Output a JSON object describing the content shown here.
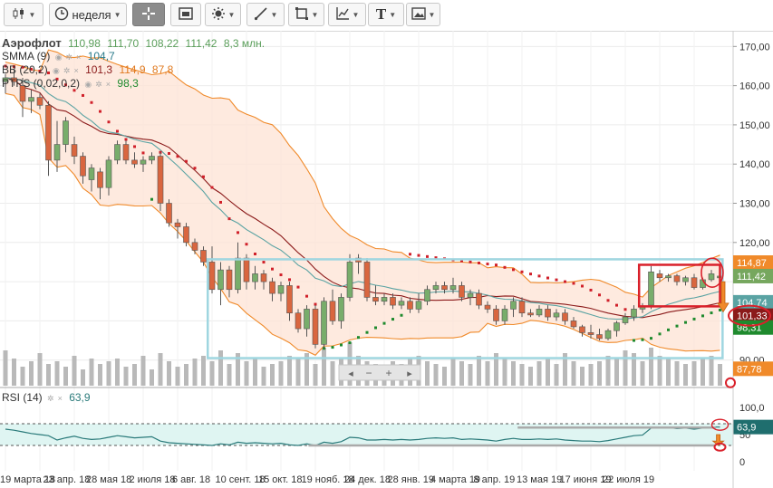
{
  "toolbar": {
    "period_label": "неделя",
    "buttons": [
      "candles-icon",
      "clock-icon",
      "crosshair-icon",
      "window-icon",
      "brightness-icon",
      "line-tool-icon",
      "shape-icon",
      "indicator-icon",
      "text-icon",
      "image-icon"
    ]
  },
  "legend": {
    "ticker": "Аэрофлот",
    "ohlc": [
      "110,98",
      "111,70",
      "108,22",
      "111,42"
    ],
    "volume": "8,3 млн.",
    "smma_label": "SMMA (9)",
    "smma_value": "104,7",
    "bb_label": "BB (20,2)",
    "bb_values": [
      "101,3",
      "114,9",
      "87,8"
    ],
    "ptps_label": "PTPS (0,02,0,2)",
    "ptps_value": "98,3"
  },
  "rsi_legend": {
    "label": "RSI (14)",
    "value": "63,9"
  },
  "price_axis_ticks": [
    "170,00",
    "160,00",
    "150,00",
    "140,00",
    "130,00",
    "120,00",
    "100,00"
  ],
  "price_axis_tag_90": "90,00",
  "rsi_axis_ticks": [
    "100,0",
    "50",
    "0"
  ],
  "price_tags": [
    {
      "text": "114,87",
      "color": "#f08a2a"
    },
    {
      "text": "111,42",
      "color": "#76a75e"
    },
    {
      "text": "104,74",
      "color": "#5aa3a3"
    },
    {
      "text": "101,33",
      "color": "#8b1a1a"
    },
    {
      "text": "98,31",
      "color": "#1f8a2e"
    },
    {
      "text": "87,78",
      "color": "#f08a2a"
    }
  ],
  "rsi_tag": {
    "text": "63,9",
    "color": "#1f6e6e"
  },
  "x_axis_labels": [
    "19 марта 18",
    "23 апр. 18",
    "28 мая 18",
    "2 июля 18",
    "6 авг. 18",
    "10 сент. 18",
    "15 окт. 18",
    "19 нояб. 18",
    "24 дек. 18",
    "28 янв. 19",
    "4 марта 19",
    "8 апр. 19",
    "13 мая 19",
    "17 июня 19",
    "22 июля 19"
  ],
  "nav_controls": [
    "◂",
    "−",
    "+",
    "▸"
  ],
  "colors": {
    "bull": "#78ad6b",
    "bear": "#d9663f",
    "bb_band": "#f08a2a",
    "bb_fill": "#fde3d4",
    "smma": "#5aa3a3",
    "bb_mid": "#8b1a1a",
    "ptps_bull": "#1f8a2e",
    "ptps_bear": "#d0202a",
    "volume": "#b9b9b9",
    "rsi": "#2a7a7a",
    "rsi_fill": "#dff5f2",
    "annotation_box": "#9fd6e0",
    "annotation_red": "#d9202a"
  },
  "chart_data": {
    "type": "candlestick",
    "period": "неделя",
    "ticker": "Аэрофлот",
    "ylim": [
      83,
      174
    ],
    "candles": [
      {
        "o": 161,
        "h": 163,
        "l": 158,
        "c": 162
      },
      {
        "o": 162,
        "h": 164,
        "l": 160,
        "c": 161
      },
      {
        "o": 160,
        "h": 162,
        "l": 152,
        "c": 156
      },
      {
        "o": 156,
        "h": 159,
        "l": 153,
        "c": 157
      },
      {
        "o": 157,
        "h": 158,
        "l": 154,
        "c": 155
      },
      {
        "o": 155,
        "h": 156,
        "l": 137,
        "c": 141
      },
      {
        "o": 141,
        "h": 151,
        "l": 138,
        "c": 145
      },
      {
        "o": 145,
        "h": 152,
        "l": 143,
        "c": 151
      },
      {
        "o": 145,
        "h": 147,
        "l": 140,
        "c": 142
      },
      {
        "o": 142,
        "h": 143,
        "l": 135,
        "c": 137
      },
      {
        "o": 136,
        "h": 140,
        "l": 133,
        "c": 139
      },
      {
        "o": 138,
        "h": 139,
        "l": 131,
        "c": 134
      },
      {
        "o": 134,
        "h": 142,
        "l": 132,
        "c": 141
      },
      {
        "o": 141,
        "h": 146,
        "l": 140,
        "c": 145
      },
      {
        "o": 145,
        "h": 146,
        "l": 140,
        "c": 141
      },
      {
        "o": 141,
        "h": 143,
        "l": 139,
        "c": 140
      },
      {
        "o": 140,
        "h": 142,
        "l": 138,
        "c": 141
      },
      {
        "o": 141,
        "h": 143,
        "l": 140,
        "c": 142
      },
      {
        "o": 142,
        "h": 143,
        "l": 128,
        "c": 130
      },
      {
        "o": 130,
        "h": 131,
        "l": 124,
        "c": 125
      },
      {
        "o": 125,
        "h": 126,
        "l": 121,
        "c": 124
      },
      {
        "o": 124,
        "h": 125,
        "l": 119,
        "c": 120
      },
      {
        "o": 120,
        "h": 121,
        "l": 117,
        "c": 118
      },
      {
        "o": 118,
        "h": 119,
        "l": 114,
        "c": 115
      },
      {
        "o": 115,
        "h": 119,
        "l": 107,
        "c": 108
      },
      {
        "o": 108,
        "h": 115,
        "l": 104,
        "c": 113
      },
      {
        "o": 113,
        "h": 114,
        "l": 106,
        "c": 108
      },
      {
        "o": 108,
        "h": 120,
        "l": 107,
        "c": 116
      },
      {
        "o": 116,
        "h": 117,
        "l": 108,
        "c": 110
      },
      {
        "o": 110,
        "h": 114,
        "l": 108,
        "c": 112
      },
      {
        "o": 112,
        "h": 113,
        "l": 108,
        "c": 110
      },
      {
        "o": 110,
        "h": 111,
        "l": 105,
        "c": 107
      },
      {
        "o": 107,
        "h": 110,
        "l": 105,
        "c": 109
      },
      {
        "o": 109,
        "h": 110,
        "l": 100,
        "c": 102
      },
      {
        "o": 102,
        "h": 103,
        "l": 97,
        "c": 98
      },
      {
        "o": 98,
        "h": 104,
        "l": 96,
        "c": 103
      },
      {
        "o": 103,
        "h": 104,
        "l": 93,
        "c": 94
      },
      {
        "o": 94,
        "h": 106,
        "l": 93,
        "c": 105
      },
      {
        "o": 105,
        "h": 108,
        "l": 99,
        "c": 100
      },
      {
        "o": 100,
        "h": 107,
        "l": 98,
        "c": 106
      },
      {
        "o": 106,
        "h": 117,
        "l": 105,
        "c": 115
      },
      {
        "o": 116,
        "h": 117,
        "l": 112,
        "c": 115
      },
      {
        "o": 115,
        "h": 116,
        "l": 105,
        "c": 106
      },
      {
        "o": 106,
        "h": 109,
        "l": 104,
        "c": 105
      },
      {
        "o": 105,
        "h": 107,
        "l": 104,
        "c": 106
      },
      {
        "o": 106,
        "h": 107,
        "l": 103,
        "c": 104
      },
      {
        "o": 104,
        "h": 106,
        "l": 103,
        "c": 105
      },
      {
        "o": 105,
        "h": 106,
        "l": 102,
        "c": 103
      },
      {
        "o": 103,
        "h": 107,
        "l": 102,
        "c": 105
      },
      {
        "o": 105,
        "h": 109,
        "l": 104,
        "c": 108
      },
      {
        "o": 108,
        "h": 110,
        "l": 107,
        "c": 109
      },
      {
        "o": 109,
        "h": 110,
        "l": 107,
        "c": 108
      },
      {
        "o": 108,
        "h": 111,
        "l": 107,
        "c": 109
      },
      {
        "o": 109,
        "h": 110,
        "l": 105,
        "c": 106
      },
      {
        "o": 106,
        "h": 108,
        "l": 104,
        "c": 107
      },
      {
        "o": 107,
        "h": 108,
        "l": 103,
        "c": 104
      },
      {
        "o": 104,
        "h": 105,
        "l": 102,
        "c": 103
      },
      {
        "o": 103,
        "h": 104,
        "l": 99,
        "c": 100
      },
      {
        "o": 100,
        "h": 104,
        "l": 99,
        "c": 103
      },
      {
        "o": 103,
        "h": 106,
        "l": 101,
        "c": 105
      },
      {
        "o": 105,
        "h": 106,
        "l": 101,
        "c": 102
      },
      {
        "o": 102,
        "h": 103,
        "l": 101,
        "c": 101.5
      },
      {
        "o": 101.5,
        "h": 104,
        "l": 101,
        "c": 103
      },
      {
        "o": 103,
        "h": 104,
        "l": 100,
        "c": 101
      },
      {
        "o": 101,
        "h": 103,
        "l": 100,
        "c": 102
      },
      {
        "o": 102,
        "h": 103,
        "l": 99,
        "c": 100
      },
      {
        "o": 100,
        "h": 101,
        "l": 98,
        "c": 98.5
      },
      {
        "o": 98.5,
        "h": 99,
        "l": 96,
        "c": 97
      },
      {
        "o": 97,
        "h": 99,
        "l": 95.5,
        "c": 96.5
      },
      {
        "o": 96.5,
        "h": 98,
        "l": 95,
        "c": 95.5
      },
      {
        "o": 95.5,
        "h": 98,
        "l": 95,
        "c": 97.5
      },
      {
        "o": 97.5,
        "h": 100,
        "l": 96,
        "c": 99.5
      },
      {
        "o": 99.5,
        "h": 102,
        "l": 99,
        "c": 101
      },
      {
        "o": 101,
        "h": 104,
        "l": 100,
        "c": 103
      },
      {
        "o": 103,
        "h": 104.5,
        "l": 102,
        "c": 103.5
      },
      {
        "o": 104,
        "h": 114,
        "l": 103,
        "c": 112.5
      },
      {
        "o": 112,
        "h": 113,
        "l": 110,
        "c": 111
      },
      {
        "o": 111,
        "h": 112,
        "l": 110,
        "c": 111.5
      },
      {
        "o": 111.5,
        "h": 112,
        "l": 109,
        "c": 110
      },
      {
        "o": 110,
        "h": 111.5,
        "l": 109,
        "c": 111
      },
      {
        "o": 111,
        "h": 112,
        "l": 108,
        "c": 108.5
      },
      {
        "o": 108.5,
        "h": 111,
        "l": 108,
        "c": 110.5
      },
      {
        "o": 110.5,
        "h": 113,
        "l": 110,
        "c": 112
      },
      {
        "o": 110.98,
        "h": 111.7,
        "l": 108.22,
        "c": 111.42
      }
    ],
    "volume_ylim": [
      0,
      20
    ],
    "volumes": [
      13,
      10,
      7,
      9,
      12,
      8,
      9,
      7,
      11,
      6,
      10,
      8,
      9,
      10,
      7,
      8,
      11,
      6,
      12,
      9,
      7,
      8,
      10,
      11,
      9,
      13,
      8,
      12,
      9,
      10,
      7,
      8,
      9,
      11,
      10,
      12,
      8,
      14,
      9,
      10,
      16,
      11,
      9,
      8,
      7,
      9,
      8,
      10,
      11,
      9,
      8,
      7,
      10,
      9,
      8,
      11,
      9,
      12,
      10,
      9,
      8,
      7,
      9,
      10,
      8,
      12,
      9,
      7,
      8,
      9,
      11,
      10,
      13,
      12,
      9,
      14,
      11,
      10,
      9,
      8,
      9,
      10,
      11,
      8
    ],
    "rsi_ylim": [
      0,
      100
    ],
    "rsi_levels": [
      70,
      30
    ],
    "rsi": [
      60,
      58,
      55,
      52,
      50,
      48,
      40,
      44,
      47,
      43,
      41,
      42,
      45,
      48,
      46,
      44,
      45,
      46,
      38,
      35,
      34,
      33,
      32,
      31,
      30,
      33,
      31,
      36,
      34,
      35,
      34,
      33,
      34,
      31,
      30,
      33,
      30,
      36,
      34,
      37,
      45,
      44,
      40,
      40,
      41,
      40,
      41,
      40,
      41,
      43,
      44,
      43,
      44,
      41,
      42,
      41,
      40,
      38,
      41,
      43,
      41,
      41,
      42,
      41,
      42,
      40,
      39,
      38,
      38,
      37,
      39,
      42,
      45,
      48,
      49,
      62,
      62,
      63,
      61,
      62,
      60,
      62,
      64,
      63.9
    ]
  }
}
